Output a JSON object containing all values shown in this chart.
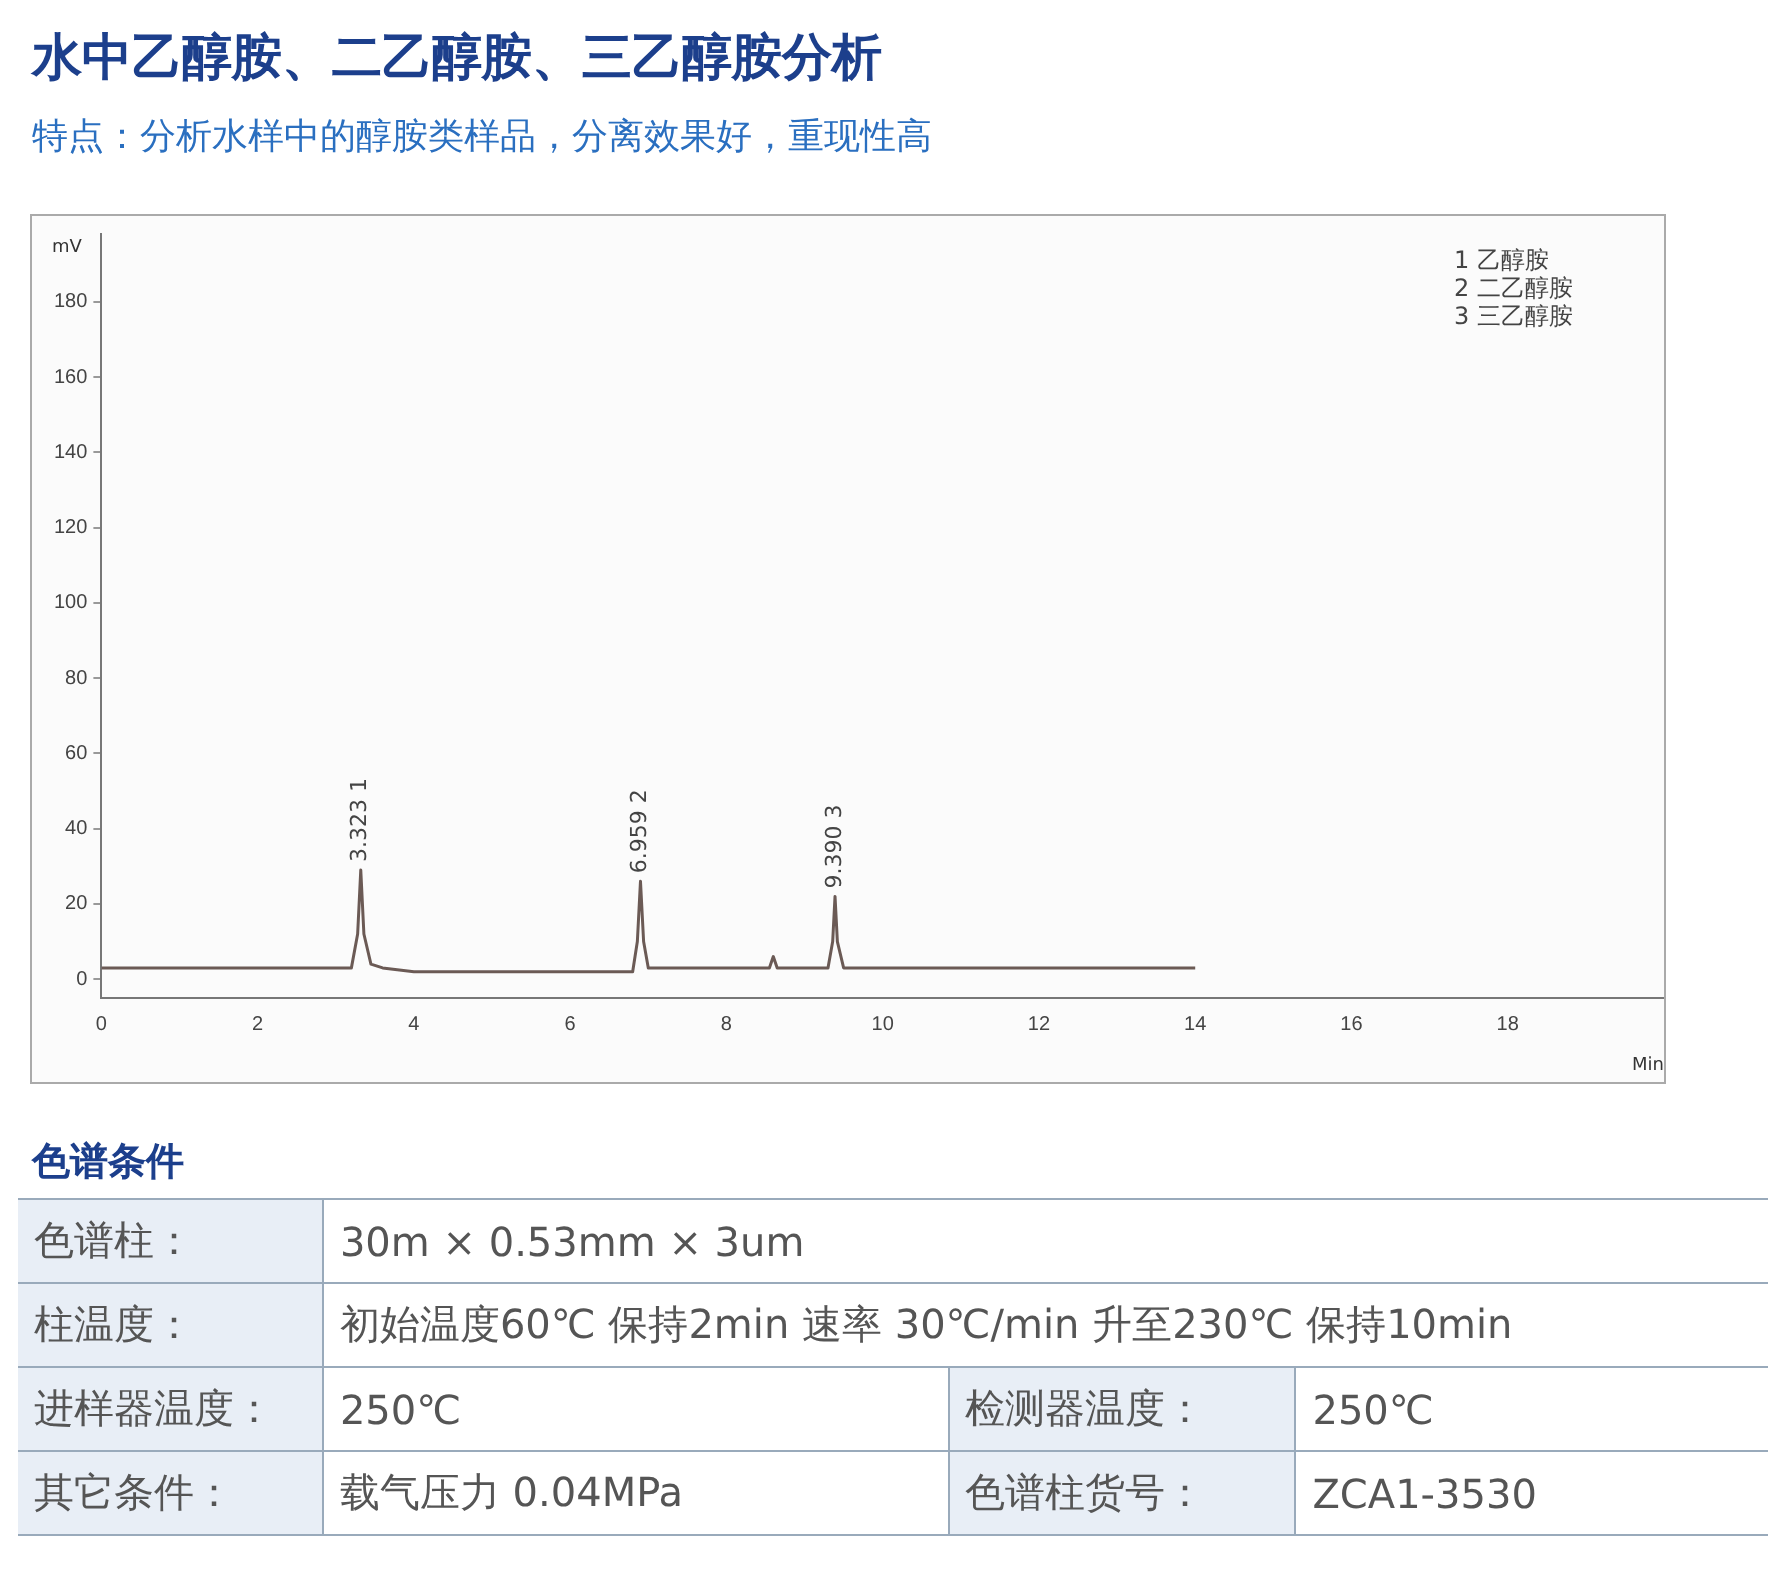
{
  "chart_data": {
    "type": "line",
    "title": "水中乙醇胺、二乙醇胺、三乙醇胺分析",
    "subtitle": "特点：分析水样中的醇胺类样品，分离效果好，重现性高",
    "xlabel": "Min",
    "ylabel": "mV",
    "series": [
      {
        "color": "#6b5a55",
        "x": [
          0,
          1,
          2,
          3,
          3.2,
          3.28,
          3.32,
          3.36,
          3.45,
          3.6,
          4,
          5,
          6,
          6.8,
          6.86,
          6.9,
          6.94,
          7.0,
          7.2,
          8,
          8.55,
          8.6,
          8.65,
          9,
          9.3,
          9.36,
          9.39,
          9.42,
          9.5,
          10,
          11,
          12,
          13,
          14
        ],
        "values": [
          3,
          3,
          3,
          3,
          3,
          12,
          29,
          12,
          4,
          3,
          2,
          2,
          2,
          2,
          10,
          26,
          10,
          3,
          3,
          3,
          3,
          6,
          3,
          3,
          3,
          10,
          22,
          10,
          3,
          3,
          3,
          3,
          3,
          3
        ]
      }
    ],
    "xlim": [
      0,
      20
    ],
    "xticks": [
      0,
      2,
      4,
      6,
      8,
      10,
      12,
      14,
      16,
      18
    ],
    "ylim": [
      -5,
      198
    ],
    "yticks": [
      0,
      20,
      40,
      60,
      80,
      100,
      120,
      140,
      160,
      180
    ],
    "grid": false,
    "legend": false,
    "marker": "none",
    "line_style": "solid",
    "annotations": [
      {
        "text": "3.323 1",
        "x": 3.32,
        "y": 29
      },
      {
        "text": "6.959 2",
        "x": 6.9,
        "y": 26
      },
      {
        "text": "9.390 3",
        "x": 9.39,
        "y": 22
      },
      "1 乙醇胺",
      "2 二乙醇胺",
      "3 三乙醇胺",
      "色谱条件",
      "色谱柱：",
      "30m × 0.53mm × 3um",
      "柱温度：",
      "初始温度60℃ 保持2min 速率  30℃/min 升至230℃ 保持10min",
      "进样器温度：",
      "250℃",
      "检测器温度：",
      "250℃",
      "其它条件：",
      "载气压力 0.04MPa",
      "色谱柱货号：",
      "ZCA1-3530"
    ]
  }
}
